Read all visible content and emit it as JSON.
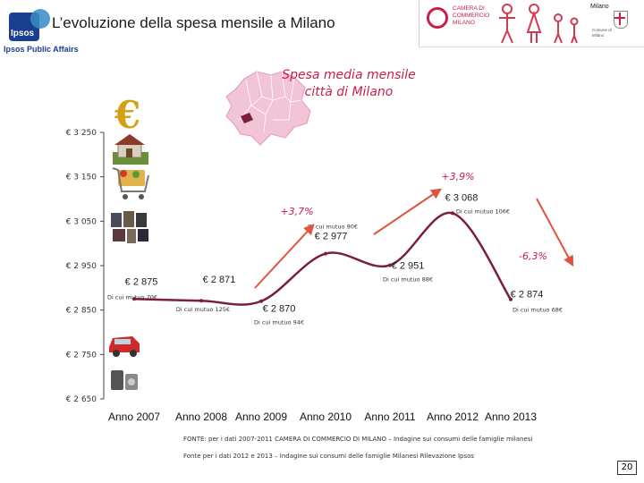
{
  "header": {
    "title": "L’evoluzione della spesa mensile a Milano",
    "brand": "Ipsos",
    "brand_sub": "Ipsos Public Affairs",
    "chamber": [
      "CAMERA DI",
      "COMMERCIO",
      "MILANO"
    ],
    "city": "Milano",
    "comune": "Comune di Milano"
  },
  "chart_data": {
    "type": "line",
    "title": "Spesa media mensile città di Milano",
    "title_lines": [
      "Spesa media mensile",
      "città di Milano"
    ],
    "categories": [
      "Anno 2007",
      "Anno 2008",
      "Anno 2009",
      "Anno 2010",
      "Anno 2011",
      "Anno 2012",
      "Anno 2013"
    ],
    "values": [
      2875,
      2871,
      2870,
      2977,
      2951,
      3068,
      2874
    ],
    "value_labels": [
      "€ 2 875",
      "€ 2 871",
      "€ 2 870",
      "€ 2 977",
      "€ 2 951",
      "€ 3 068",
      "€ 2 874"
    ],
    "sub_labels": [
      "Di cui mutuo 70€",
      "Di cui mutuo 125€",
      "Di cui mutuo 94€",
      "Di cui mutuo 90€",
      "Di cui mutuo 88€",
      "Di cui mutuo 106€",
      "Di cui mutuo 68€"
    ],
    "y_ticks": [
      3250,
      3150,
      3050,
      2950,
      2850,
      2750,
      2650
    ],
    "y_tick_labels": [
      "€ 3 250",
      "€ 3 150",
      "€ 3 050",
      "€ 2 950",
      "€ 2 850",
      "€ 2 750",
      "€ 2 650"
    ],
    "ylim": [
      2650,
      3250
    ],
    "changes": [
      "+3,7%",
      "+3,9%",
      "-6,3%"
    ],
    "line_color": "#7b1f3a",
    "arrow_color": "#e0533f"
  },
  "source_lines": [
    "FONTE: per i dati 2007-2011 CAMERA DI COMMERCIO DI MILANO – Indagine sui consumi delle famiglie milanesi",
    "Fonte per i dati 2012 e 2013 – Indagine sui consumi delle famiglie Milanesi Rilevazione Ipsos"
  ],
  "page_number": "20"
}
